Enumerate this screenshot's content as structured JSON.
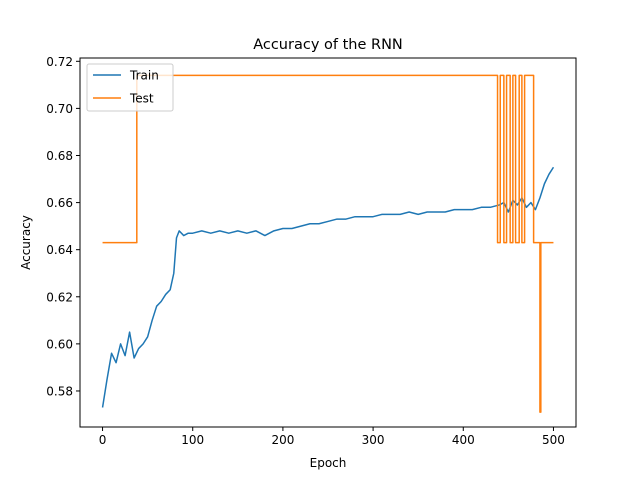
{
  "chart_data": {
    "type": "line",
    "title": "Accuracy of the RNN",
    "xlabel": "Epoch",
    "ylabel": "Accuracy",
    "xlim": [
      -25,
      525
    ],
    "ylim": [
      0.5647,
      0.7214
    ],
    "xticks": [
      0,
      100,
      200,
      300,
      400,
      500
    ],
    "xtick_labels": [
      "0",
      "100",
      "200",
      "300",
      "400",
      "500"
    ],
    "yticks": [
      0.58,
      0.6,
      0.62,
      0.64,
      0.66,
      0.68,
      0.7,
      0.72
    ],
    "ytick_labels": [
      "0.58",
      "0.60",
      "0.62",
      "0.64",
      "0.66",
      "0.68",
      "0.70",
      "0.72"
    ],
    "grid": false,
    "legend_position": "top-left",
    "series": [
      {
        "name": "Train",
        "color": "#1f77b4",
        "x": [
          0,
          5,
          10,
          15,
          20,
          25,
          30,
          35,
          40,
          45,
          50,
          55,
          60,
          65,
          70,
          75,
          79,
          82,
          85,
          90,
          95,
          100,
          110,
          120,
          130,
          140,
          150,
          160,
          170,
          180,
          190,
          200,
          210,
          220,
          230,
          240,
          250,
          260,
          270,
          280,
          290,
          300,
          310,
          320,
          330,
          340,
          350,
          360,
          370,
          380,
          390,
          400,
          410,
          420,
          430,
          440,
          445,
          450,
          455,
          460,
          465,
          470,
          475,
          480,
          485,
          490,
          495,
          500
        ],
        "y": [
          0.573,
          0.585,
          0.596,
          0.592,
          0.6,
          0.595,
          0.605,
          0.594,
          0.598,
          0.6,
          0.603,
          0.61,
          0.616,
          0.618,
          0.621,
          0.623,
          0.63,
          0.645,
          0.648,
          0.646,
          0.647,
          0.647,
          0.648,
          0.647,
          0.648,
          0.647,
          0.648,
          0.647,
          0.648,
          0.646,
          0.648,
          0.649,
          0.649,
          0.65,
          0.651,
          0.651,
          0.652,
          0.653,
          0.653,
          0.654,
          0.654,
          0.654,
          0.655,
          0.655,
          0.655,
          0.656,
          0.655,
          0.656,
          0.656,
          0.656,
          0.657,
          0.657,
          0.657,
          0.658,
          0.658,
          0.659,
          0.66,
          0.656,
          0.661,
          0.659,
          0.662,
          0.658,
          0.66,
          0.657,
          0.662,
          0.668,
          0.672,
          0.675
        ]
      },
      {
        "name": "Test",
        "color": "#ff7f0e",
        "x": [
          0,
          38,
          38,
          438,
          438,
          441,
          441,
          445,
          445,
          448,
          448,
          452,
          452,
          455,
          455,
          458,
          458,
          462,
          462,
          465,
          465,
          468,
          468,
          478,
          478,
          485,
          485,
          486,
          486,
          487,
          487,
          500
        ],
        "y": [
          0.643,
          0.643,
          0.714,
          0.714,
          0.643,
          0.643,
          0.714,
          0.714,
          0.643,
          0.643,
          0.714,
          0.714,
          0.643,
          0.643,
          0.714,
          0.714,
          0.643,
          0.643,
          0.714,
          0.714,
          0.643,
          0.643,
          0.714,
          0.714,
          0.643,
          0.643,
          0.571,
          0.571,
          0.643,
          0.643,
          0.643,
          0.643
        ]
      }
    ]
  }
}
